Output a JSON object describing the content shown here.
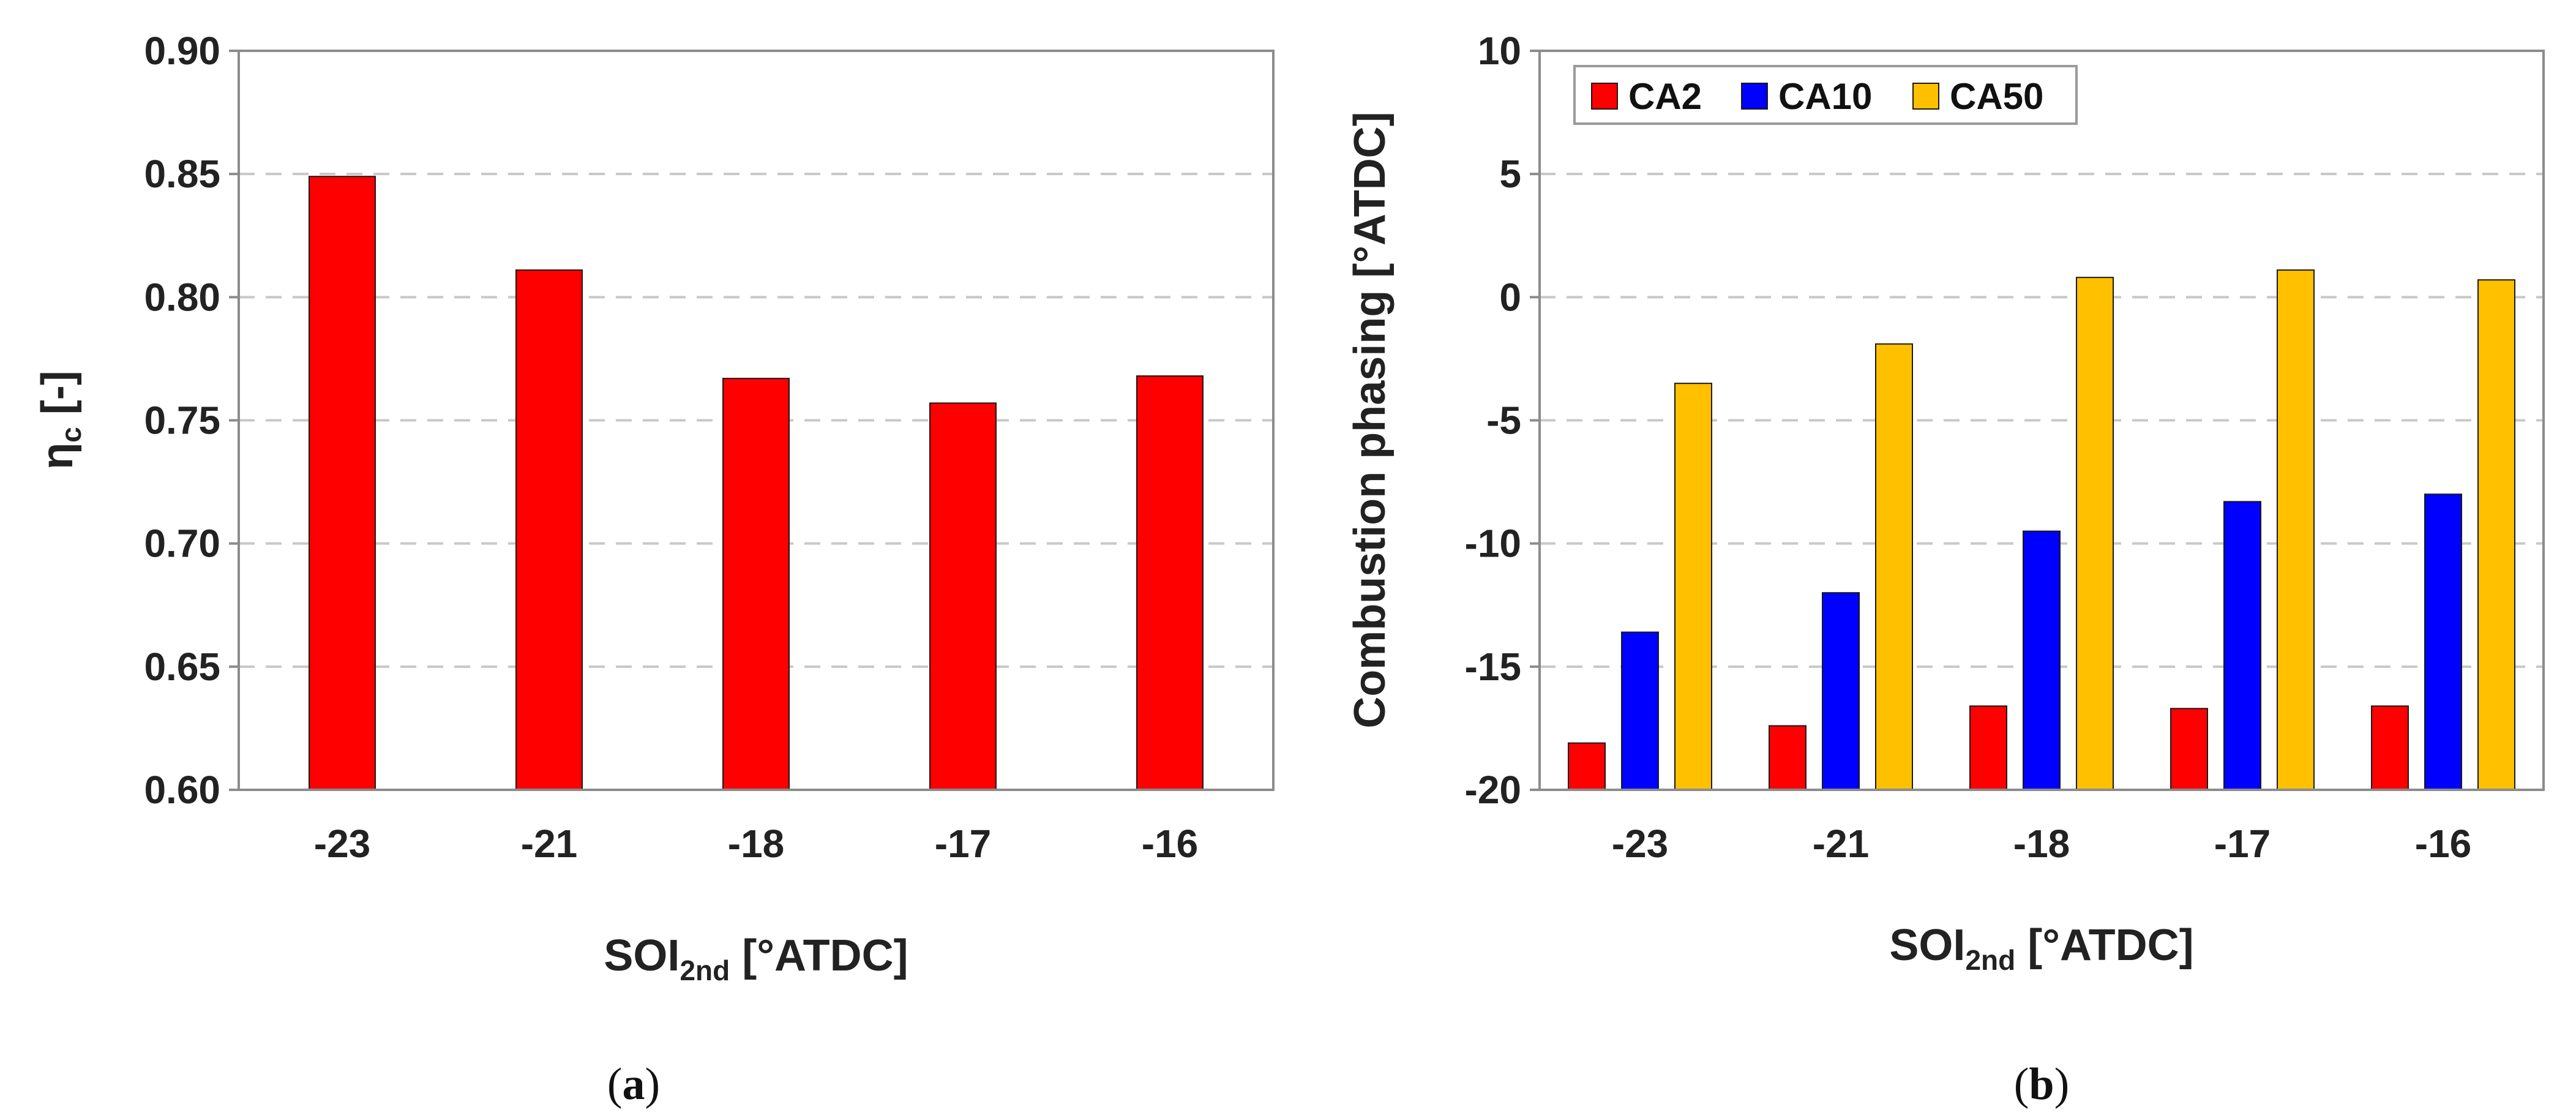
{
  "chart_data": [
    {
      "id": "a",
      "type": "bar",
      "caption": "a",
      "categories": [
        "-23",
        "-21",
        "-18",
        "-17",
        "-16"
      ],
      "series": [
        {
          "name": "ηc",
          "color": "#ff0000",
          "values": [
            0.849,
            0.811,
            0.767,
            0.757,
            0.768
          ]
        }
      ],
      "ylabel": {
        "main": "η",
        "sub": "c",
        "rest": " [-]"
      },
      "xlabel": {
        "main": "SOI",
        "sub": "2nd",
        "rest": " [°ATDC]"
      },
      "ylim": [
        0.6,
        0.9
      ],
      "yticks": [
        "0.60",
        "0.65",
        "0.70",
        "0.75",
        "0.80",
        "0.85",
        "0.90"
      ],
      "grid": true,
      "legend": null
    },
    {
      "id": "b",
      "type": "bar",
      "caption": "b",
      "categories": [
        "-23",
        "-21",
        "-18",
        "-17",
        "-16"
      ],
      "series": [
        {
          "name": "CA2",
          "color": "#ff0000",
          "values": [
            -18.1,
            -17.4,
            -16.6,
            -16.7,
            -16.6
          ]
        },
        {
          "name": "CA10",
          "color": "#0000ff",
          "values": [
            -13.6,
            -12.0,
            -9.5,
            -8.3,
            -8.0
          ]
        },
        {
          "name": "CA50",
          "color": "#ffc000",
          "values": [
            -3.5,
            -1.9,
            0.8,
            1.1,
            0.7
          ]
        }
      ],
      "ylabel": {
        "main": "Combustion phasing [°ATDC]",
        "sub": "",
        "rest": ""
      },
      "xlabel": {
        "main": "SOI",
        "sub": "2nd",
        "rest": " [°ATDC]"
      },
      "ylim": [
        -20,
        10
      ],
      "yticks": [
        "-20",
        "-15",
        "-10",
        "-5",
        "0",
        "5",
        "10"
      ],
      "grid": true,
      "legend": "top-left"
    }
  ]
}
